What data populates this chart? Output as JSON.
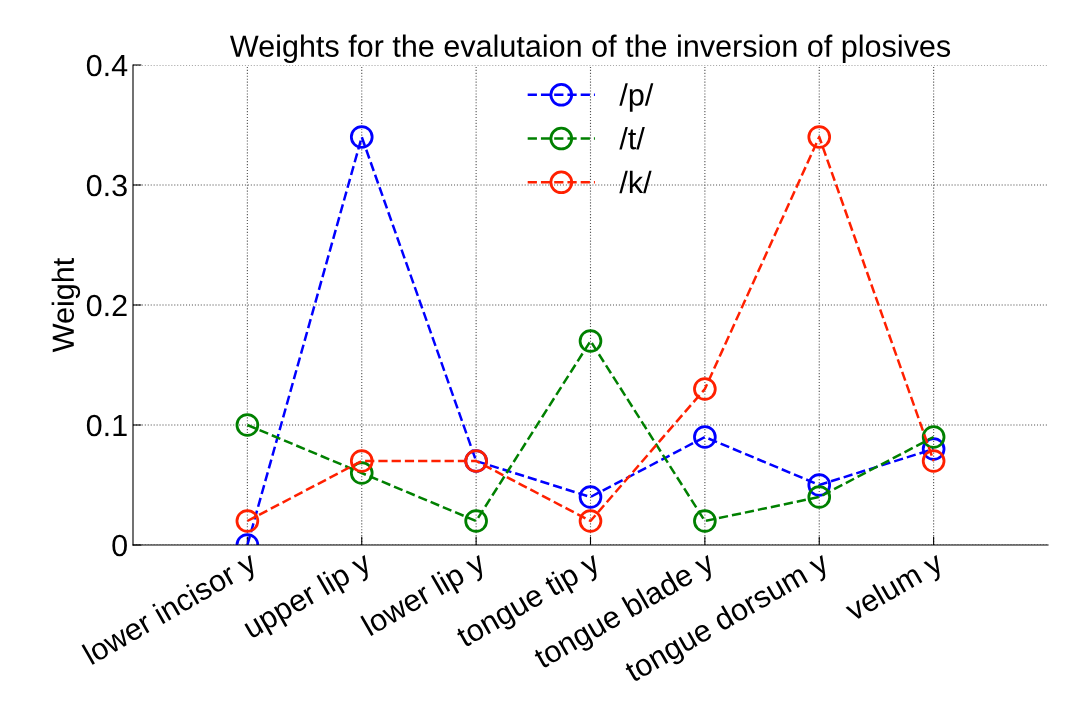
{
  "chart_data": {
    "type": "line",
    "title": "Weights for the evalutaion of the inversion of plosives",
    "ylabel": "Weight",
    "categories": [
      "lower incisor y",
      "upper lip y",
      "lower lip y",
      "tongue tip y",
      "tongue blade y",
      "tongue dorsum y",
      "velum y"
    ],
    "series": [
      {
        "name": "/p/",
        "color": "#0000ff",
        "values": [
          0,
          0.34,
          0.07,
          0.04,
          0.09,
          0.05,
          0.08
        ]
      },
      {
        "name": "/t/",
        "color": "#008000",
        "values": [
          0.1,
          0.06,
          0.02,
          0.17,
          0.02,
          0.04,
          0.09
        ]
      },
      {
        "name": "/k/",
        "color": "#ff2000",
        "values": [
          0.02,
          0.07,
          0.07,
          0.02,
          0.13,
          0.34,
          0.07
        ]
      }
    ],
    "ylim": [
      0,
      0.4
    ],
    "yticks": [
      0,
      0.1,
      0.2,
      0.3,
      0.4
    ],
    "grid": true,
    "legend": "top",
    "marker": "circle",
    "line_style": "dashed"
  }
}
